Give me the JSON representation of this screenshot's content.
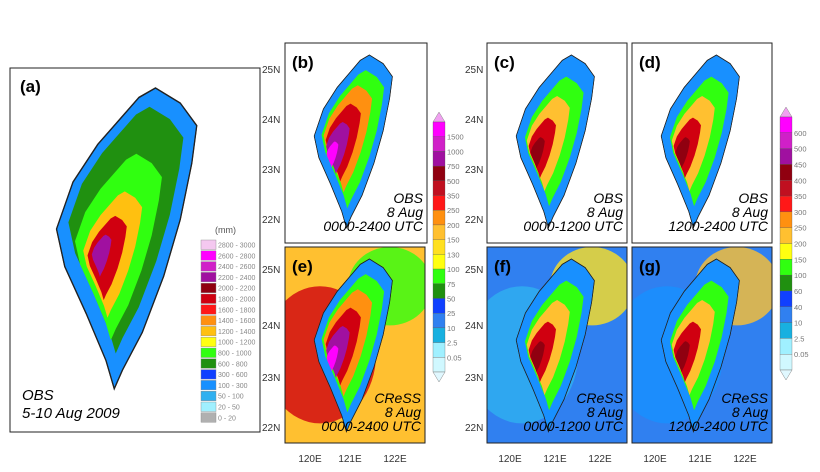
{
  "panel_a": {
    "label": "(a)",
    "line1": "OBS",
    "line2": "5-10 Aug 2009",
    "legend_unit": "(mm)",
    "legend": [
      {
        "range": "2800 - 3000",
        "color": "#f4c8f0"
      },
      {
        "range": "2600 - 2800",
        "color": "#ff00ff"
      },
      {
        "range": "2400 - 2600",
        "color": "#d020c8"
      },
      {
        "range": "2200 - 2400",
        "color": "#a010a0"
      },
      {
        "range": "2000 - 2200",
        "color": "#900010"
      },
      {
        "range": "1800 - 2000",
        "color": "#d00010"
      },
      {
        "range": "1600 - 1800",
        "color": "#ff1818"
      },
      {
        "range": "1400 - 1600",
        "color": "#ff9010"
      },
      {
        "range": "1200 - 1400",
        "color": "#ffc010"
      },
      {
        "range": "1000 - 1200",
        "color": "#ffff10"
      },
      {
        "range": "800 - 1000",
        "color": "#30ff10"
      },
      {
        "range": "600 - 800",
        "color": "#209010"
      },
      {
        "range": "300 - 600",
        "color": "#1040ff"
      },
      {
        "range": "100 - 300",
        "color": "#1890ff"
      },
      {
        "range": "50 - 100",
        "color": "#30b0f0"
      },
      {
        "range": "20 - 50",
        "color": "#a0f0ff"
      },
      {
        "range": "0 - 20",
        "color": "#b0b0b0"
      }
    ]
  },
  "panels": [
    {
      "id": "b",
      "label": "(b)",
      "line1": "OBS",
      "line2": "8 Aug",
      "line3": "0000-2400 UTC"
    },
    {
      "id": "c",
      "label": "(c)",
      "line1": "OBS",
      "line2": "8 Aug",
      "line3": "0000-1200 UTC"
    },
    {
      "id": "d",
      "label": "(d)",
      "line1": "OBS",
      "line2": "8 Aug",
      "line3": "1200-2400 UTC"
    },
    {
      "id": "e",
      "label": "(e)",
      "line1": "CReSS",
      "line2": "8 Aug",
      "line3": "0000-2400 UTC"
    },
    {
      "id": "f",
      "label": "(f)",
      "line1": "CReSS",
      "line2": "8 Aug",
      "line3": "0000-1200 UTC"
    },
    {
      "id": "g",
      "label": "(g)",
      "line1": "CReSS",
      "line2": "8 Aug",
      "line3": "1200-2400 UTC"
    }
  ],
  "lat_labels": [
    "25N",
    "24N",
    "23N",
    "22N"
  ],
  "lon_labels": [
    "120E",
    "121E",
    "122E"
  ],
  "colorbar1": {
    "labels": [
      "1500",
      "1000",
      "750",
      "500",
      "350",
      "250",
      "200",
      "150",
      "130",
      "100",
      "75",
      "50",
      "25",
      "10",
      "2.5",
      "0.05"
    ],
    "colors": [
      "#ff00ff",
      "#d020c8",
      "#a010a0",
      "#900010",
      "#c01020",
      "#ff1818",
      "#ff9010",
      "#ffc030",
      "#ffe020",
      "#ffff10",
      "#30ff10",
      "#209010",
      "#1040ff",
      "#3080f0",
      "#18b0e0",
      "#a0f0ff",
      "#d0f8ff"
    ]
  },
  "colorbar2": {
    "labels": [
      "600",
      "500",
      "450",
      "400",
      "350",
      "300",
      "250",
      "200",
      "150",
      "100",
      "60",
      "40",
      "10",
      "2.5",
      "0.05"
    ],
    "colors": [
      "#ff00ff",
      "#d020c8",
      "#a010a0",
      "#900010",
      "#c01020",
      "#ff1818",
      "#ff9010",
      "#ffc030",
      "#ffff10",
      "#30ff10",
      "#209010",
      "#1040ff",
      "#3080f0",
      "#18b0e0",
      "#a0f0ff",
      "#d0f8ff"
    ]
  }
}
